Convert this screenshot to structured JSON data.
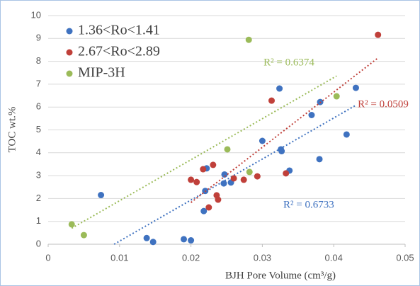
{
  "chart_data": {
    "type": "scatter",
    "x_label": "BJH Pore Volume (cm³/g)",
    "y_label": "TOC wt.%",
    "xlim": [
      0,
      0.05
    ],
    "xticks": [
      0,
      0.01,
      0.02,
      0.03,
      0.04,
      0.05
    ],
    "ylim": [
      0,
      10
    ],
    "yticks": [
      0,
      1,
      2,
      3,
      4,
      5,
      6,
      7,
      8,
      9,
      10
    ],
    "grid": true,
    "legend": "upper left",
    "trendline": "linear",
    "series": [
      {
        "name": "1.36<Ro<1.41",
        "color": "#3f72c0",
        "r2_label": "R² = 0.6733",
        "x": [
          0.0074,
          0.0147,
          0.0138,
          0.019,
          0.02,
          0.0218,
          0.022,
          0.0222,
          0.0247,
          0.0246,
          0.0256,
          0.03,
          0.0324,
          0.0326,
          0.0327,
          0.0338,
          0.0369,
          0.0381,
          0.038,
          0.0418,
          0.0431
        ],
        "values": [
          2.15,
          0.1,
          0.27,
          0.22,
          0.17,
          1.45,
          2.33,
          3.32,
          3.05,
          2.66,
          2.7,
          4.52,
          6.81,
          4.15,
          4.07,
          3.22,
          5.65,
          6.22,
          3.72,
          4.8,
          6.84
        ]
      },
      {
        "name": "2.67<Ro<2.89",
        "color": "#c0403a",
        "r2_label": "R² = 0.0509",
        "x": [
          0.02,
          0.0208,
          0.0217,
          0.0231,
          0.0225,
          0.0236,
          0.0238,
          0.026,
          0.0274,
          0.0293,
          0.0313,
          0.0333,
          0.0462
        ],
        "values": [
          2.82,
          2.72,
          3.28,
          3.47,
          1.61,
          2.14,
          1.95,
          2.88,
          2.82,
          2.97,
          6.28,
          3.1,
          9.16
        ]
      },
      {
        "name": "MIP-3H",
        "color": "#9bbb59",
        "r2_label": "R² = 0.6374",
        "x": [
          0.0033,
          0.005,
          0.0251,
          0.0281,
          0.0282,
          0.0404
        ],
        "values": [
          0.87,
          0.4,
          4.15,
          8.94,
          3.16,
          6.47
        ]
      }
    ]
  }
}
